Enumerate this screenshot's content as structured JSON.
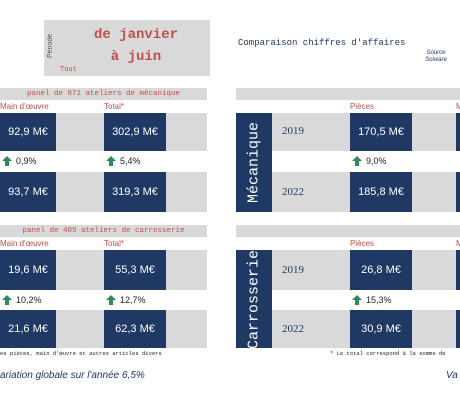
{
  "period": {
    "vertical_label": "Période",
    "line1": "de janvier",
    "line2": "à juin",
    "scope": "Tout"
  },
  "header": {
    "title": "Comparaison chiffres d'affaires",
    "source_line1": "Source",
    "source_line2": "Solware"
  },
  "mecanique_left": {
    "panel_title": "panel de 871 ateliers de mécanique",
    "col1": "Main d'œuvre",
    "col2": "Total*",
    "v2019_col1": "92,9 M€",
    "v2019_col2": "302,9 M€",
    "pct_col1": "0,9%",
    "pct_col2": "5,4%",
    "v2022_col1": "93,7 M€",
    "v2022_col2": "319,3 M€"
  },
  "carrosserie_left": {
    "panel_title": "panel de 409 ateliers de carrosserie",
    "col1": "Main d'œuvre",
    "col2": "Total*",
    "v2019_col1": "19,6 M€",
    "v2019_col2": "55,3 M€",
    "pct_col1": "10,2%",
    "pct_col2": "12,7%",
    "v2022_col1": "21,6 M€",
    "v2022_col2": "62,3 M€"
  },
  "mecanique_right": {
    "category": "Mécanique",
    "col1": "Pièces",
    "col2": "M",
    "year1": "2019",
    "year2": "2022",
    "v2019": "170,5 M€",
    "pct": "9,0%",
    "v2022": "185,8 M€"
  },
  "carrosserie_right": {
    "category": "Carrosserie",
    "col1": "Pièces",
    "col2": "M",
    "year1": "2019",
    "year2": "2022",
    "v2019": "26,8 M€",
    "pct": "15,3%",
    "v2022": "30,9 M€"
  },
  "footer": {
    "left_note": "es pièces, main d'œuvre et autres articles divers",
    "right_note": "* Le total correspond à la somme de",
    "global_left": "ariation globale sur l'année 6,5%",
    "global_right": "Va"
  },
  "colors": {
    "navy": "#1f3864",
    "red": "#c0504d",
    "grey": "#d9d9d9",
    "green_arrow": "#2e8b57"
  }
}
